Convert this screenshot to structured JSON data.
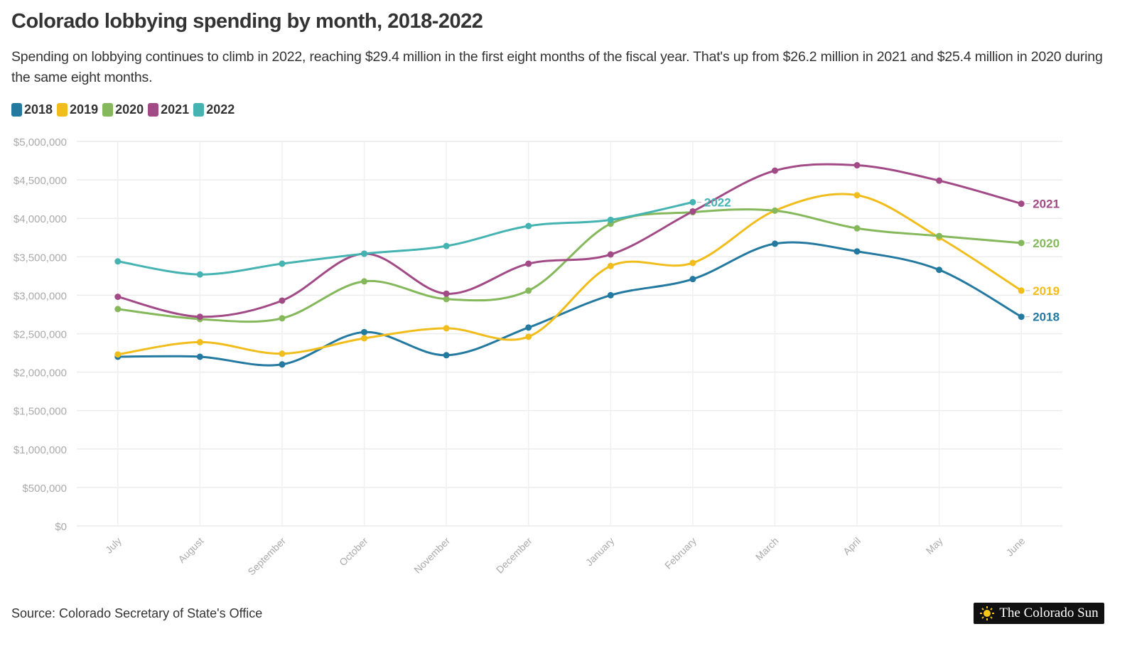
{
  "chart_data": {
    "type": "line",
    "title": "Colorado lobbying spending by month, 2018-2022",
    "subtitle": "Spending on lobbying continues to climb in 2022, reaching $29.4 million in the first eight months of the fiscal year. That's up from $26.2 million in 2021 and $25.4 million in 2020 during the same eight months.",
    "source": "Source: Colorado Secretary of State's Office",
    "logo": "The Colorado Sun",
    "categories": [
      "July",
      "August",
      "September",
      "October",
      "November",
      "December",
      "January",
      "February",
      "March",
      "April",
      "May",
      "June"
    ],
    "series": [
      {
        "name": "2018",
        "color": "#23799f",
        "values": [
          2200000,
          2200000,
          2100000,
          2520000,
          2220000,
          2580000,
          3000000,
          3210000,
          3670000,
          3570000,
          3330000,
          2720000
        ]
      },
      {
        "name": "2019",
        "color": "#f1bd1c",
        "values": [
          2230000,
          2390000,
          2240000,
          2440000,
          2570000,
          2460000,
          3380000,
          3420000,
          4100000,
          4300000,
          3750000,
          3060000
        ]
      },
      {
        "name": "2020",
        "color": "#84b85a",
        "values": [
          2820000,
          2690000,
          2700000,
          3180000,
          2950000,
          3060000,
          3930000,
          4080000,
          4100000,
          3870000,
          3770000,
          3680000
        ]
      },
      {
        "name": "2021",
        "color": "#a24a86",
        "values": [
          2980000,
          2720000,
          2930000,
          3540000,
          3020000,
          3410000,
          3530000,
          4090000,
          4620000,
          4690000,
          4490000,
          4190000
        ]
      },
      {
        "name": "2022",
        "color": "#45b3b2",
        "values": [
          3440000,
          3270000,
          3410000,
          3540000,
          3640000,
          3900000,
          3980000,
          4210000,
          null,
          null,
          null,
          null
        ]
      }
    ],
    "ylim": [
      0,
      5000000
    ],
    "yticks": [
      {
        "value": 0,
        "label": "$0"
      },
      {
        "value": 500000,
        "label": "$500,000"
      },
      {
        "value": 1000000,
        "label": "$1,000,000"
      },
      {
        "value": 1500000,
        "label": "$1,500,000"
      },
      {
        "value": 2000000,
        "label": "$2,000,000"
      },
      {
        "value": 2500000,
        "label": "$2,500,000"
      },
      {
        "value": 3000000,
        "label": "$3,000,000"
      },
      {
        "value": 3500000,
        "label": "$3,500,000"
      },
      {
        "value": 4000000,
        "label": "$4,000,000"
      },
      {
        "value": 4500000,
        "label": "$4,500,000"
      },
      {
        "value": 5000000,
        "label": "$5,000,000"
      }
    ],
    "grid": true
  }
}
